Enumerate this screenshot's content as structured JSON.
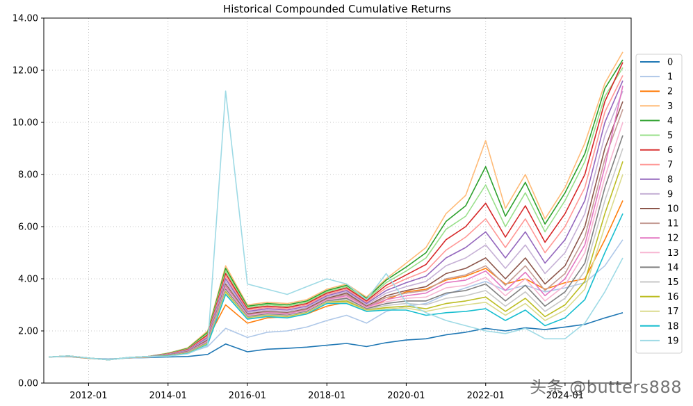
{
  "watermark": "头条 @butters888",
  "chart_data": {
    "type": "line",
    "title": "Historical Compounded Cumulative Returns",
    "xlabel": "",
    "ylabel": "",
    "xlim": [
      "2010-11-15",
      "2025-08-31"
    ],
    "ylim": [
      0,
      14
    ],
    "grid": true,
    "legend_position": "right",
    "y_ticks": [
      "0.00",
      "2.00",
      "4.00",
      "6.00",
      "8.00",
      "10.00",
      "12.00",
      "14.00"
    ],
    "x_ticks": [
      {
        "date": "2012-01-01",
        "label": "2012-01"
      },
      {
        "date": "2014-01-01",
        "label": "2014-01"
      },
      {
        "date": "2016-01-01",
        "label": "2016-01"
      },
      {
        "date": "2018-01-01",
        "label": "2018-01"
      },
      {
        "date": "2020-01-01",
        "label": "2020-01"
      },
      {
        "date": "2022-01-01",
        "label": "2022-01"
      },
      {
        "date": "2024-01-01",
        "label": "2024-01"
      }
    ],
    "dates": [
      "2011-01-01",
      "2011-07-01",
      "2012-01-01",
      "2012-07-01",
      "2013-01-01",
      "2013-07-01",
      "2014-01-01",
      "2014-07-01",
      "2015-01-01",
      "2015-06-15",
      "2016-01-01",
      "2016-07-01",
      "2017-01-01",
      "2017-07-01",
      "2018-01-01",
      "2018-07-01",
      "2019-01-01",
      "2019-07-01",
      "2020-01-01",
      "2020-07-01",
      "2021-01-01",
      "2021-07-01",
      "2022-01-01",
      "2022-07-01",
      "2023-01-01",
      "2023-07-01",
      "2024-01-01",
      "2024-07-01",
      "2025-01-01",
      "2025-06-15"
    ],
    "series": [
      {
        "name": "0",
        "color": "#1f77b4",
        "values": [
          1.0,
          1.02,
          0.95,
          0.92,
          0.96,
          0.98,
          1.0,
          1.02,
          1.1,
          1.5,
          1.2,
          1.3,
          1.33,
          1.38,
          1.45,
          1.52,
          1.4,
          1.55,
          1.65,
          1.7,
          1.85,
          1.95,
          2.1,
          2.0,
          2.12,
          2.05,
          2.15,
          2.25,
          2.5,
          2.7
        ]
      },
      {
        "name": "1",
        "color": "#aec7e8",
        "values": [
          1.0,
          1.03,
          0.95,
          0.91,
          0.96,
          0.99,
          1.05,
          1.15,
          1.4,
          2.1,
          1.75,
          1.95,
          2.0,
          2.15,
          2.4,
          2.6,
          2.3,
          2.75,
          2.95,
          3.05,
          3.4,
          3.65,
          3.9,
          3.55,
          3.75,
          3.5,
          3.65,
          3.85,
          4.5,
          5.5
        ]
      },
      {
        "name": "2",
        "color": "#ff7f0e",
        "values": [
          1.0,
          1.03,
          0.95,
          0.9,
          0.97,
          1.0,
          1.08,
          1.25,
          1.7,
          3.0,
          2.3,
          2.5,
          2.55,
          2.65,
          2.95,
          3.1,
          2.8,
          3.2,
          3.5,
          3.6,
          3.95,
          4.1,
          4.4,
          3.8,
          4.0,
          3.6,
          3.85,
          4.0,
          5.5,
          7.0
        ]
      },
      {
        "name": "3",
        "color": "#ffbb78",
        "values": [
          1.0,
          1.04,
          0.96,
          0.89,
          0.98,
          1.02,
          1.15,
          1.35,
          2.0,
          4.5,
          3.0,
          3.1,
          3.05,
          3.2,
          3.6,
          3.8,
          3.3,
          4.0,
          4.6,
          5.2,
          6.5,
          7.2,
          9.3,
          6.7,
          8.0,
          6.3,
          7.5,
          9.2,
          11.5,
          12.7
        ]
      },
      {
        "name": "4",
        "color": "#2ca02c",
        "values": [
          1.0,
          1.04,
          0.96,
          0.89,
          0.98,
          1.02,
          1.14,
          1.33,
          1.95,
          4.4,
          2.95,
          3.05,
          3.0,
          3.15,
          3.55,
          3.75,
          3.25,
          3.95,
          4.45,
          5.0,
          6.2,
          6.8,
          8.3,
          6.4,
          7.7,
          6.1,
          7.3,
          8.8,
          11.3,
          12.4
        ]
      },
      {
        "name": "5",
        "color": "#98df8a",
        "values": [
          1.0,
          1.04,
          0.96,
          0.89,
          0.98,
          1.02,
          1.13,
          1.31,
          1.9,
          4.3,
          2.9,
          3.0,
          2.95,
          3.1,
          3.5,
          3.7,
          3.2,
          3.85,
          4.3,
          4.8,
          5.9,
          6.4,
          7.6,
          6.0,
          7.3,
          5.8,
          7.0,
          8.5,
          11.0,
          12.1
        ]
      },
      {
        "name": "6",
        "color": "#d62728",
        "values": [
          1.0,
          1.04,
          0.96,
          0.89,
          0.98,
          1.02,
          1.12,
          1.29,
          1.85,
          4.2,
          2.85,
          2.95,
          2.9,
          3.05,
          3.45,
          3.65,
          3.15,
          3.75,
          4.15,
          4.55,
          5.5,
          6.0,
          6.9,
          5.6,
          6.8,
          5.4,
          6.5,
          8.0,
          10.8,
          12.3
        ]
      },
      {
        "name": "7",
        "color": "#ff9896",
        "values": [
          1.0,
          1.04,
          0.96,
          0.89,
          0.98,
          1.02,
          1.11,
          1.27,
          1.8,
          4.1,
          2.8,
          2.9,
          2.85,
          3.0,
          3.4,
          3.6,
          3.1,
          3.65,
          4.0,
          4.3,
          5.1,
          5.6,
          6.3,
          5.2,
          6.3,
          5.0,
          6.0,
          7.5,
          10.4,
          11.8
        ]
      },
      {
        "name": "8",
        "color": "#9467bd",
        "values": [
          1.0,
          1.04,
          0.96,
          0.89,
          0.98,
          1.02,
          1.1,
          1.25,
          1.75,
          4.0,
          2.75,
          2.85,
          2.8,
          2.95,
          3.35,
          3.55,
          3.05,
          3.55,
          3.85,
          4.1,
          4.8,
          5.2,
          5.8,
          4.8,
          5.8,
          4.6,
          5.5,
          7.0,
          10.0,
          11.6
        ]
      },
      {
        "name": "9",
        "color": "#c5b0d5",
        "values": [
          1.0,
          1.04,
          0.96,
          0.89,
          0.98,
          1.02,
          1.09,
          1.23,
          1.7,
          3.9,
          2.7,
          2.8,
          2.75,
          2.9,
          3.3,
          3.5,
          3.0,
          3.45,
          3.7,
          3.9,
          4.5,
          4.8,
          5.3,
          4.4,
          5.3,
          4.2,
          5.0,
          6.5,
          9.5,
          11.2
        ]
      },
      {
        "name": "10",
        "color": "#8c564b",
        "values": [
          1.0,
          1.04,
          0.96,
          0.89,
          0.98,
          1.02,
          1.08,
          1.21,
          1.65,
          3.8,
          2.65,
          2.75,
          2.7,
          2.85,
          3.25,
          3.45,
          2.95,
          3.35,
          3.55,
          3.7,
          4.2,
          4.4,
          4.8,
          4.0,
          4.8,
          3.8,
          4.5,
          6.0,
          9.0,
          10.8
        ]
      },
      {
        "name": "11",
        "color": "#c49c94",
        "values": [
          1.0,
          1.04,
          0.96,
          0.89,
          0.98,
          1.02,
          1.07,
          1.2,
          1.62,
          3.75,
          2.62,
          2.72,
          2.68,
          2.82,
          3.22,
          3.4,
          2.92,
          3.28,
          3.45,
          3.55,
          4.0,
          4.15,
          4.5,
          3.75,
          4.5,
          3.55,
          4.2,
          5.6,
          8.6,
          10.5
        ]
      },
      {
        "name": "12",
        "color": "#e377c2",
        "values": [
          1.0,
          1.04,
          0.96,
          0.89,
          0.98,
          1.02,
          1.07,
          1.19,
          1.6,
          3.7,
          2.6,
          2.7,
          2.65,
          2.8,
          3.2,
          3.35,
          2.9,
          3.2,
          3.35,
          3.45,
          3.85,
          3.95,
          4.3,
          3.55,
          4.25,
          3.35,
          4.0,
          5.3,
          8.3,
          11.4
        ]
      },
      {
        "name": "13",
        "color": "#f7b6d2",
        "values": [
          1.0,
          1.04,
          0.96,
          0.89,
          0.98,
          1.02,
          1.06,
          1.18,
          1.58,
          3.65,
          2.58,
          2.68,
          2.62,
          2.78,
          3.18,
          3.3,
          2.88,
          3.12,
          3.25,
          3.3,
          3.65,
          3.75,
          4.05,
          3.35,
          4.0,
          3.15,
          3.75,
          5.0,
          7.9,
          10.0
        ]
      },
      {
        "name": "14",
        "color": "#7f7f7f",
        "values": [
          1.0,
          1.04,
          0.96,
          0.89,
          0.98,
          1.02,
          1.06,
          1.17,
          1.56,
          3.6,
          2.55,
          2.65,
          2.6,
          2.75,
          3.15,
          3.25,
          2.85,
          3.05,
          3.15,
          3.15,
          3.45,
          3.55,
          3.8,
          3.15,
          3.75,
          2.95,
          3.5,
          4.6,
          7.5,
          9.5
        ]
      },
      {
        "name": "15",
        "color": "#c7c7c7",
        "values": [
          1.0,
          1.04,
          0.96,
          0.89,
          0.98,
          1.02,
          1.05,
          1.16,
          1.54,
          3.55,
          2.52,
          2.62,
          2.58,
          2.72,
          3.12,
          3.2,
          2.82,
          2.98,
          3.05,
          3.0,
          3.25,
          3.35,
          3.55,
          2.95,
          3.5,
          2.75,
          3.25,
          4.3,
          7.0,
          9.0
        ]
      },
      {
        "name": "16",
        "color": "#bcbd22",
        "values": [
          1.0,
          1.04,
          0.96,
          0.89,
          0.98,
          1.02,
          1.05,
          1.15,
          1.52,
          3.5,
          2.5,
          2.6,
          2.55,
          2.7,
          3.1,
          3.15,
          2.8,
          2.9,
          2.95,
          2.85,
          3.05,
          3.15,
          3.3,
          2.75,
          3.25,
          2.55,
          3.0,
          3.9,
          6.5,
          8.5
        ]
      },
      {
        "name": "17",
        "color": "#dbdb8d",
        "values": [
          1.0,
          1.04,
          0.96,
          0.89,
          0.98,
          1.02,
          1.04,
          1.14,
          1.5,
          3.45,
          2.48,
          2.58,
          2.52,
          2.68,
          3.08,
          3.1,
          2.78,
          2.85,
          2.88,
          2.75,
          2.9,
          3.0,
          3.1,
          2.6,
          3.05,
          2.4,
          2.8,
          3.6,
          6.0,
          8.0
        ]
      },
      {
        "name": "18",
        "color": "#17becf",
        "values": [
          1.0,
          1.04,
          0.96,
          0.89,
          0.98,
          1.02,
          1.04,
          1.13,
          1.48,
          3.4,
          2.45,
          2.55,
          2.5,
          2.65,
          3.05,
          3.05,
          2.75,
          2.8,
          2.8,
          2.6,
          2.7,
          2.75,
          2.85,
          2.4,
          2.8,
          2.2,
          2.5,
          3.2,
          5.0,
          6.5
        ]
      },
      {
        "name": "19",
        "color": "#9edae5",
        "values": [
          1.0,
          1.04,
          0.96,
          0.89,
          0.98,
          1.02,
          1.03,
          1.12,
          1.45,
          11.2,
          3.8,
          3.6,
          3.4,
          3.7,
          4.0,
          3.8,
          3.2,
          4.2,
          3.1,
          2.7,
          2.4,
          2.2,
          2.0,
          1.9,
          2.1,
          1.7,
          1.7,
          2.3,
          3.5,
          4.8
        ]
      }
    ]
  }
}
